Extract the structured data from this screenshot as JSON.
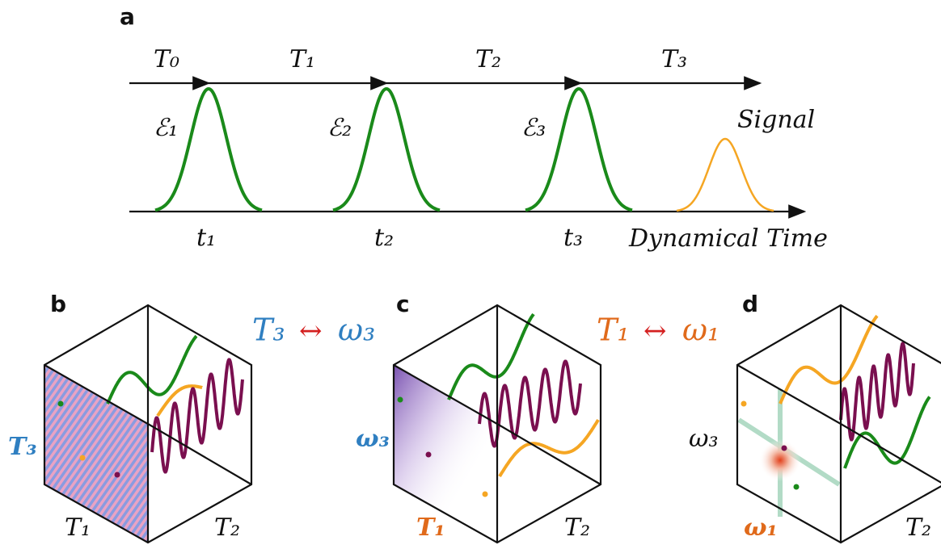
{
  "panels": {
    "a": {
      "label": "a",
      "intervals": [
        "T₀",
        "T₁",
        "T₂",
        "T₃"
      ],
      "pulses": [
        "ℰ₁",
        "ℰ₂",
        "ℰ₃"
      ],
      "signal": "Signal",
      "times": [
        "t₁",
        "t₂",
        "t₃"
      ],
      "axis": "Dynamical Time"
    },
    "b": {
      "label": "b",
      "left_axis": "T₃",
      "bottom_left": "T₁",
      "bottom_right": "T₂"
    },
    "c": {
      "label": "c",
      "left_axis": "ω₃",
      "bottom_left": "T₁",
      "bottom_right": "T₂"
    },
    "d": {
      "label": "d",
      "left_axis": "ω₃",
      "bottom_left": "ω₁",
      "bottom_right": "T₂"
    }
  },
  "transforms": [
    {
      "from": "T₃",
      "arrow": "↔",
      "to": "ω₃"
    },
    {
      "from": "T₁",
      "arrow": "↔",
      "to": "ω₁"
    }
  ]
}
